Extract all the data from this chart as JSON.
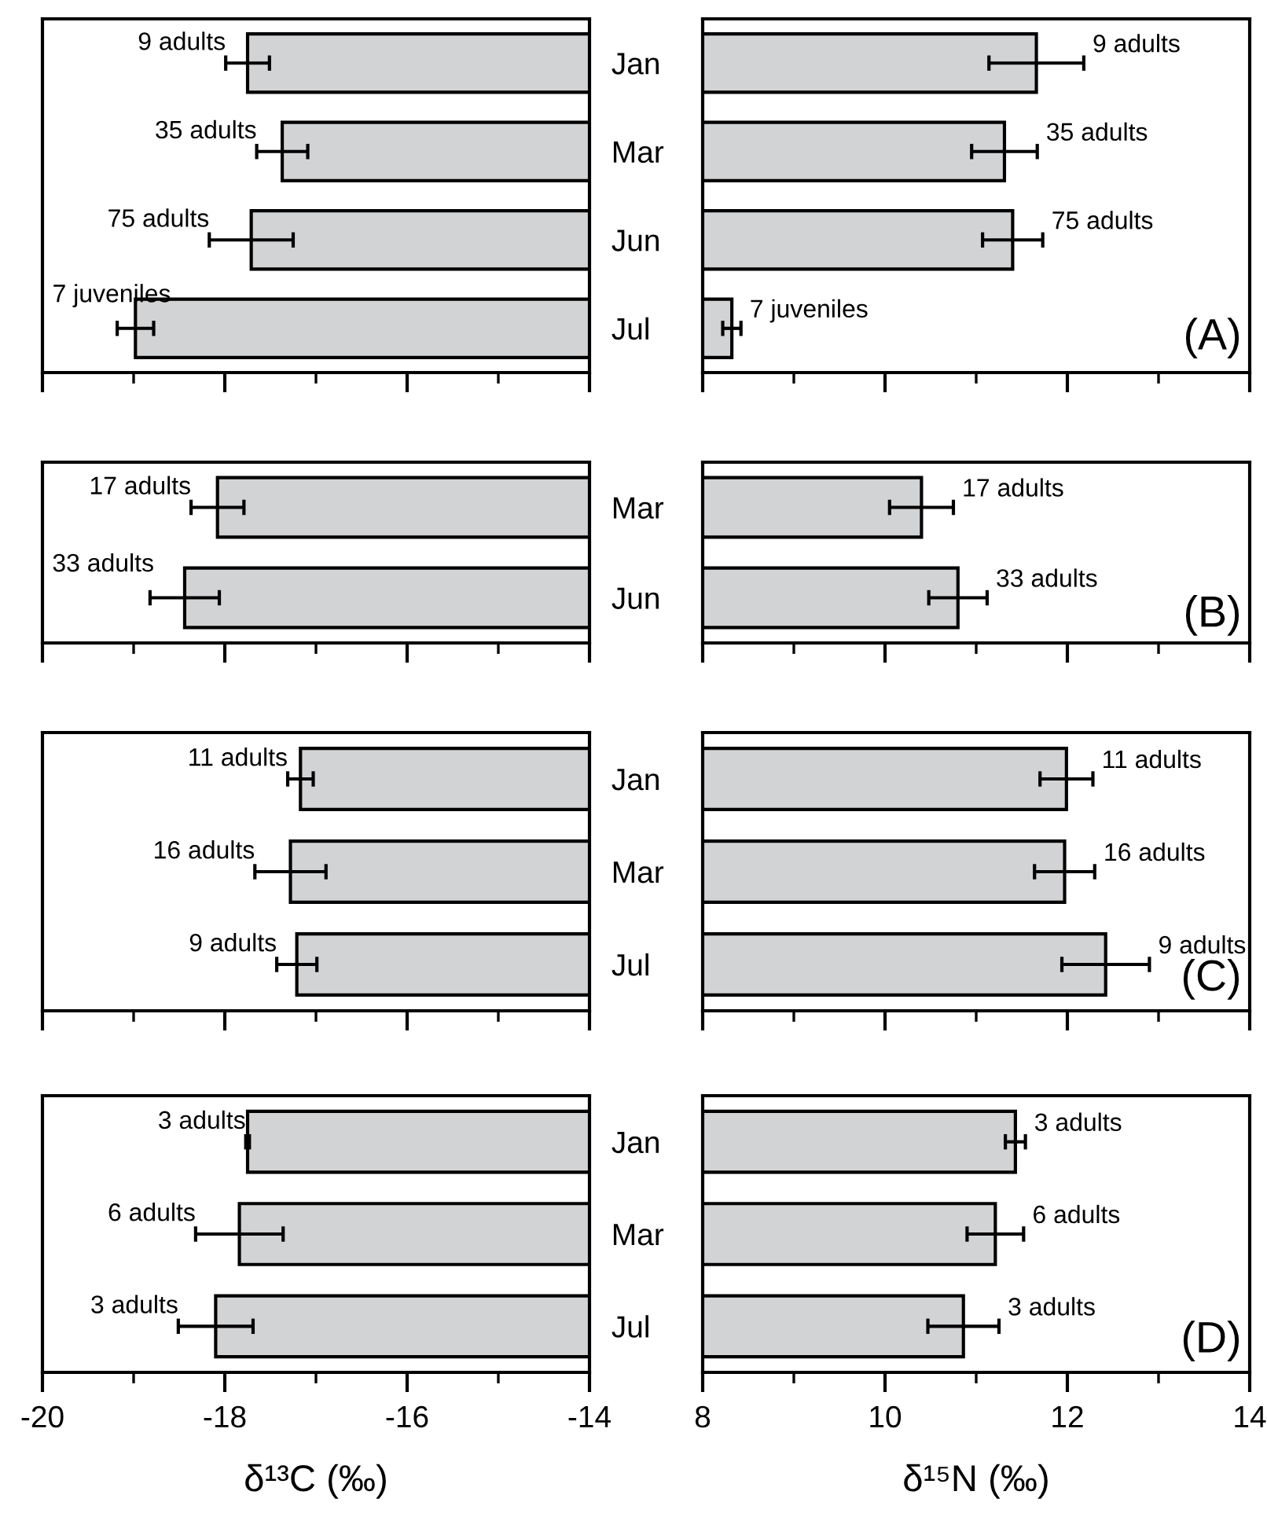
{
  "chart_data": [
    {
      "type": "bar",
      "orientation": "horizontal",
      "categories": [
        "Jan",
        "Mar",
        "Jun",
        "Jul"
      ],
      "values": [
        -17.75,
        -17.37,
        -17.71,
        -18.98
      ],
      "errors": [
        0.24,
        0.28,
        0.46,
        0.2
      ],
      "color": "#d2d3d5",
      "xlim": [
        -20,
        -14
      ],
      "xticks": [
        -20,
        {
          "value": -19,
          "label": null
        },
        -18,
        {
          "value": -17,
          "label": null
        },
        -16,
        {
          "value": -15,
          "label": null
        },
        -14
      ],
      "tick_labels": "y",
      "annotations": [
        {
          "text": "9 adults",
          "x": -17.75,
          "y": "Jan"
        },
        {
          "text": "35 adults",
          "x": -17.37,
          "y": "Mar"
        },
        {
          "text": "75 adults",
          "x": -17.71,
          "y": "Jun"
        },
        {
          "text": "7 juveniles",
          "x": -18.98,
          "y": "Jul"
        }
      ]
    },
    {
      "type": "bar",
      "orientation": "horizontal",
      "categories": [
        "Jan",
        "Mar",
        "Jun",
        "Jul"
      ],
      "values": [
        11.66,
        11.31,
        11.4,
        8.32
      ],
      "errors": [
        0.52,
        0.36,
        0.33,
        0.1
      ],
      "color": "#d2d3d5",
      "xlim": [
        8,
        14
      ],
      "xticks": [
        8,
        {
          "value": 9,
          "label": null
        },
        10,
        {
          "value": 11,
          "label": null
        },
        12,
        {
          "value": 13,
          "label": null
        },
        14
      ],
      "tick_labels": false,
      "annotations": [
        {
          "text": "9 adults",
          "x": 11.66,
          "y": "Jan"
        },
        {
          "text": "35 adults",
          "x": 11.31,
          "y": "Mar"
        },
        {
          "text": "75 adults",
          "x": 11.4,
          "y": "Jun"
        },
        {
          "text": "7 juveniles",
          "x": 8.32,
          "y": "Jul"
        },
        "(A)"
      ]
    },
    {
      "type": "bar",
      "orientation": "horizontal",
      "categories": [
        "Mar",
        "Jun"
      ],
      "values": [
        -18.08,
        -18.44
      ],
      "errors": [
        0.29,
        0.38
      ],
      "color": "#d2d3d5",
      "xlim": [
        -20,
        -14
      ],
      "xticks": [
        -20,
        {
          "value": -19,
          "label": null
        },
        -18,
        {
          "value": -17,
          "label": null
        },
        -16,
        {
          "value": -15,
          "label": null
        },
        -14
      ],
      "tick_labels": "y",
      "annotations": [
        {
          "text": "17 adults",
          "x": -18.08,
          "y": "Mar"
        },
        {
          "text": "33 adults",
          "x": -18.44,
          "y": "Jun"
        }
      ]
    },
    {
      "type": "bar",
      "orientation": "horizontal",
      "categories": [
        "Mar",
        "Jun"
      ],
      "values": [
        10.4,
        10.8
      ],
      "errors": [
        0.35,
        0.32
      ],
      "color": "#d2d3d5",
      "xlim": [
        8,
        14
      ],
      "xticks": [
        8,
        {
          "value": 9,
          "label": null
        },
        10,
        {
          "value": 11,
          "label": null
        },
        12,
        {
          "value": 13,
          "label": null
        },
        14
      ],
      "tick_labels": false,
      "annotations": [
        {
          "text": "17 adults",
          "x": 10.4,
          "y": "Mar"
        },
        {
          "text": "33 adults",
          "x": 10.8,
          "y": "Jun"
        },
        "(B)"
      ]
    },
    {
      "type": "bar",
      "orientation": "horizontal",
      "categories": [
        "Jan",
        "Mar",
        "Jul"
      ],
      "values": [
        -17.17,
        -17.28,
        -17.21
      ],
      "errors": [
        0.14,
        0.39,
        0.22
      ],
      "color": "#d2d3d5",
      "xlim": [
        -20,
        -14
      ],
      "xticks": [
        -20,
        {
          "value": -19,
          "label": null
        },
        -18,
        {
          "value": -17,
          "label": null
        },
        -16,
        {
          "value": -15,
          "label": null
        },
        -14
      ],
      "tick_labels": "y",
      "annotations": [
        {
          "text": "11 adults",
          "x": -17.17,
          "y": "Jan"
        },
        {
          "text": "16 adults",
          "x": -17.28,
          "y": "Mar"
        },
        {
          "text": "9 adults",
          "x": -17.21,
          "y": "Jul"
        }
      ]
    },
    {
      "type": "bar",
      "orientation": "horizontal",
      "categories": [
        "Jan",
        "Mar",
        "Jul"
      ],
      "values": [
        11.99,
        11.97,
        12.42
      ],
      "errors": [
        0.29,
        0.33,
        0.48
      ],
      "color": "#d2d3d5",
      "xlim": [
        8,
        14
      ],
      "xticks": [
        8,
        {
          "value": 9,
          "label": null
        },
        10,
        {
          "value": 11,
          "label": null
        },
        12,
        {
          "value": 13,
          "label": null
        },
        14
      ],
      "tick_labels": false,
      "annotations": [
        {
          "text": "11 adults",
          "x": 11.99,
          "y": "Jan"
        },
        {
          "text": "16 adults",
          "x": 11.97,
          "y": "Mar"
        },
        {
          "text": "9 adults",
          "x": 12.42,
          "y": "Jul"
        },
        "(C)"
      ]
    },
    {
      "type": "bar",
      "orientation": "horizontal",
      "categories": [
        "Jan",
        "Mar",
        "Jul"
      ],
      "values": [
        -17.75,
        -17.84,
        -18.1
      ],
      "errors": [
        0.02,
        0.48,
        0.41
      ],
      "color": "#d2d3d5",
      "xlim": [
        -20,
        -14
      ],
      "xticks": [
        -20,
        {
          "value": -19,
          "label": null
        },
        -18,
        {
          "value": -17,
          "label": null
        },
        -16,
        {
          "value": -15,
          "label": null
        },
        -14
      ],
      "xlabel": "δ¹³C (‰)",
      "annotations": [
        {
          "text": "3 adults",
          "x": -17.75,
          "y": "Jan"
        },
        {
          "text": "6 adults",
          "x": -17.84,
          "y": "Mar"
        },
        {
          "text": "3 adults",
          "x": -18.1,
          "y": "Jul"
        }
      ]
    },
    {
      "type": "bar",
      "orientation": "horizontal",
      "categories": [
        "Jan",
        "Mar",
        "Jul"
      ],
      "values": [
        11.43,
        11.21,
        10.86
      ],
      "errors": [
        0.11,
        0.31,
        0.39
      ],
      "color": "#d2d3d5",
      "xlim": [
        8,
        14
      ],
      "xticks": [
        8,
        {
          "value": 9,
          "label": null
        },
        10,
        {
          "value": 11,
          "label": null
        },
        12,
        {
          "value": 13,
          "label": null
        },
        14
      ],
      "tick_labels": "x",
      "xlabel": "δ¹⁵N (‰)",
      "annotations": [
        {
          "text": "3 adults",
          "x": 11.43,
          "y": "Jan"
        },
        {
          "text": "6 adults",
          "x": 11.21,
          "y": "Mar"
        },
        {
          "text": "3 adults",
          "x": 10.86,
          "y": "Jul"
        },
        "(D)"
      ]
    }
  ]
}
